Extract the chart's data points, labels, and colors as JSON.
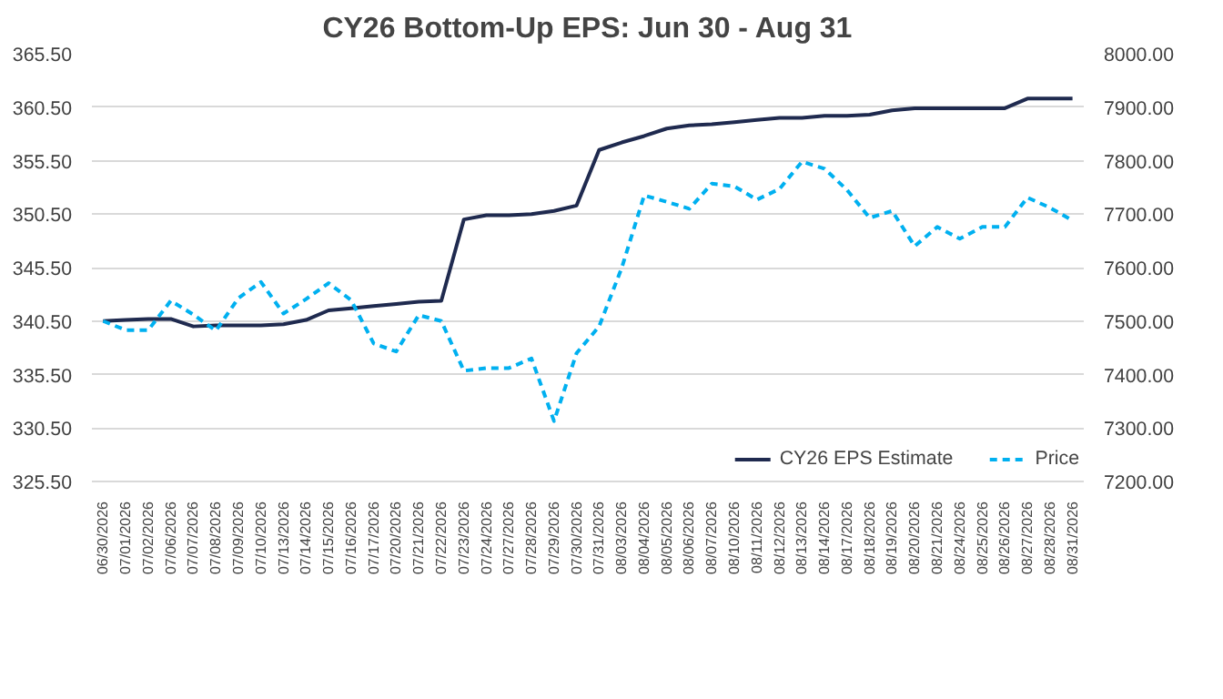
{
  "chart_data": {
    "type": "line",
    "title": "CY26 Bottom-Up EPS: Jun 30 - Aug 31",
    "categories": [
      "06/30/2026",
      "07/01/2026",
      "07/02/2026",
      "07/06/2026",
      "07/07/2026",
      "07/08/2026",
      "07/09/2026",
      "07/10/2026",
      "07/13/2026",
      "07/14/2026",
      "07/15/2026",
      "07/16/2026",
      "07/17/2026",
      "07/20/2026",
      "07/21/2026",
      "07/22/2026",
      "07/23/2026",
      "07/24/2026",
      "07/27/2026",
      "07/28/2026",
      "07/29/2026",
      "07/30/2026",
      "07/31/2026",
      "08/03/2026",
      "08/04/2026",
      "08/05/2026",
      "08/06/2026",
      "08/07/2026",
      "08/10/2026",
      "08/11/2026",
      "08/12/2026",
      "08/13/2026",
      "08/14/2026",
      "08/17/2026",
      "08/18/2026",
      "08/19/2026",
      "08/20/2026",
      "08/21/2026",
      "08/24/2026",
      "08/25/2026",
      "08/26/2026",
      "08/27/2026",
      "08/28/2026",
      "08/31/2026"
    ],
    "series": [
      {
        "name": "CY26 EPS Estimate",
        "color": "#1f2a4f",
        "line_style": "solid",
        "values": [
          340.5,
          340.6,
          340.7,
          340.7,
          340.0,
          340.1,
          340.1,
          340.1,
          340.2,
          340.6,
          341.5,
          341.7,
          341.9,
          342.1,
          342.3,
          342.4,
          350.0,
          350.4,
          350.4,
          350.5,
          350.8,
          351.3,
          356.5,
          357.2,
          357.8,
          358.5,
          358.8,
          358.9,
          359.1,
          359.3,
          359.5,
          359.5,
          359.7,
          359.7,
          359.8,
          360.2,
          360.4,
          360.4,
          360.4,
          360.4,
          360.4,
          361.3,
          361.3,
          361.3
        ]
      },
      {
        "name": "Price",
        "color": "#00b0f0",
        "line_style": "dashed",
        "axis": "y2",
        "values": [
          7500,
          7483,
          7483,
          7538,
          7512,
          7482,
          7543,
          7573,
          7514,
          7541,
          7571,
          7539,
          7458,
          7443,
          7511,
          7500,
          7407,
          7412,
          7412,
          7430,
          7313,
          7440,
          7490,
          7599,
          7735,
          7723,
          7710,
          7757,
          7752,
          7727,
          7747,
          7798,
          7785,
          7745,
          7693,
          7706,
          7640,
          7676,
          7654,
          7676,
          7676,
          7731,
          7712,
          7688
        ]
      }
    ],
    "ylim": [
      325.5,
      365.5
    ],
    "yticks": [
      {
        "value": 325.5,
        "label": "325.50"
      },
      {
        "value": 330.5,
        "label": "330.50"
      },
      {
        "value": 335.5,
        "label": "335.50"
      },
      {
        "value": 340.5,
        "label": "340.50"
      },
      {
        "value": 345.5,
        "label": "345.50"
      },
      {
        "value": 350.5,
        "label": "350.50"
      },
      {
        "value": 355.5,
        "label": "355.50"
      },
      {
        "value": 360.5,
        "label": "360.50"
      },
      {
        "value": 365.5,
        "label": "365.50"
      }
    ],
    "y2lim": [
      7200,
      8000
    ],
    "y2ticks": [
      {
        "value": 7200,
        "label": "7200.00"
      },
      {
        "value": 7300,
        "label": "7300.00"
      },
      {
        "value": 7400,
        "label": "7400.00"
      },
      {
        "value": 7500,
        "label": "7500.00"
      },
      {
        "value": 7600,
        "label": "7600.00"
      },
      {
        "value": 7700,
        "label": "7700.00"
      },
      {
        "value": 7800,
        "label": "7800.00"
      },
      {
        "value": 7900,
        "label": "7900.00"
      },
      {
        "value": 8000,
        "label": "8000.00"
      }
    ],
    "grid": "y",
    "legend": "bottom right",
    "marker": "none"
  }
}
